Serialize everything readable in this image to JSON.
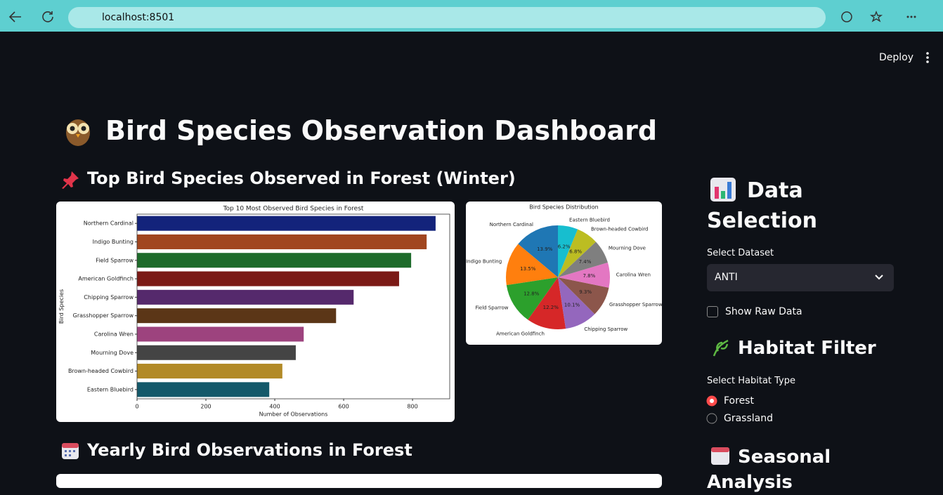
{
  "browser": {
    "url": "localhost:8501"
  },
  "toolbar": {
    "deploy": "Deploy"
  },
  "main": {
    "title": "Bird Species Observation Dashboard",
    "section_1": "Top Bird Species Observed in Forest (Winter)",
    "section_2": "Yearly Bird Observations in Forest"
  },
  "sidebar": {
    "data_heading": "Data Selection",
    "dataset_label": "Select Dataset",
    "dataset_value": "ANTI",
    "raw_data": "Show Raw Data",
    "habitat_heading": "Habitat Filter",
    "habitat_label": "Select Habitat Type",
    "habitat_options": [
      "Forest",
      "Grassland"
    ],
    "seasonal_heading": "Seasonal Analysis"
  },
  "chart_data": [
    {
      "type": "barh",
      "title": "Top 10 Most Observed Bird Species in Forest",
      "x_label": "Number of Observations",
      "y_label": "Bird Species",
      "categories": [
        "Northern Cardinal",
        "Indigo Bunting",
        "Field Sparrow",
        "American Goldfinch",
        "Chipping Sparrow",
        "Grasshopper Sparrow",
        "Carolina Wren",
        "Mourning Dove",
        "Brown-headed Cowbird",
        "Eastern Bluebird"
      ],
      "values": [
        867,
        841,
        796,
        761,
        629,
        578,
        484,
        461,
        422,
        384
      ],
      "colors": [
        "#13237b",
        "#a1461f",
        "#1e6b2b",
        "#7b1a16",
        "#55296c",
        "#5b3617",
        "#9d437e",
        "#444444",
        "#b28a27",
        "#14596a"
      ],
      "xlim": [
        0,
        908
      ],
      "xticks": [
        0,
        200,
        400,
        600,
        800
      ]
    },
    {
      "type": "pie",
      "title": "Bird Species Distribution",
      "categories": [
        "Northern Cardinal",
        "Indigo Bunting",
        "Field Sparrow",
        "American Goldfinch",
        "Chipping Sparrow",
        "Grasshopper Sparrow",
        "Carolina Wren",
        "Mourning Dove",
        "Brown-headed Cowbird",
        "Eastern Bluebird"
      ],
      "values": [
        13.9,
        13.5,
        12.8,
        12.2,
        10.1,
        9.3,
        7.8,
        7.4,
        6.8,
        6.2
      ],
      "value_labels": [
        "13.9%",
        "13.5%",
        "12.8%",
        "12.2%",
        "10.1%",
        "9.3%",
        "7.8%",
        "7.4%",
        "6.8%",
        "6.2%"
      ],
      "colors": [
        "#1f77b4",
        "#ff7f0e",
        "#2ca02c",
        "#d62728",
        "#9467bd",
        "#8c564b",
        "#e377c2",
        "#7f7f7f",
        "#bcbd22",
        "#17becf"
      ],
      "start_angle": 90
    }
  ]
}
